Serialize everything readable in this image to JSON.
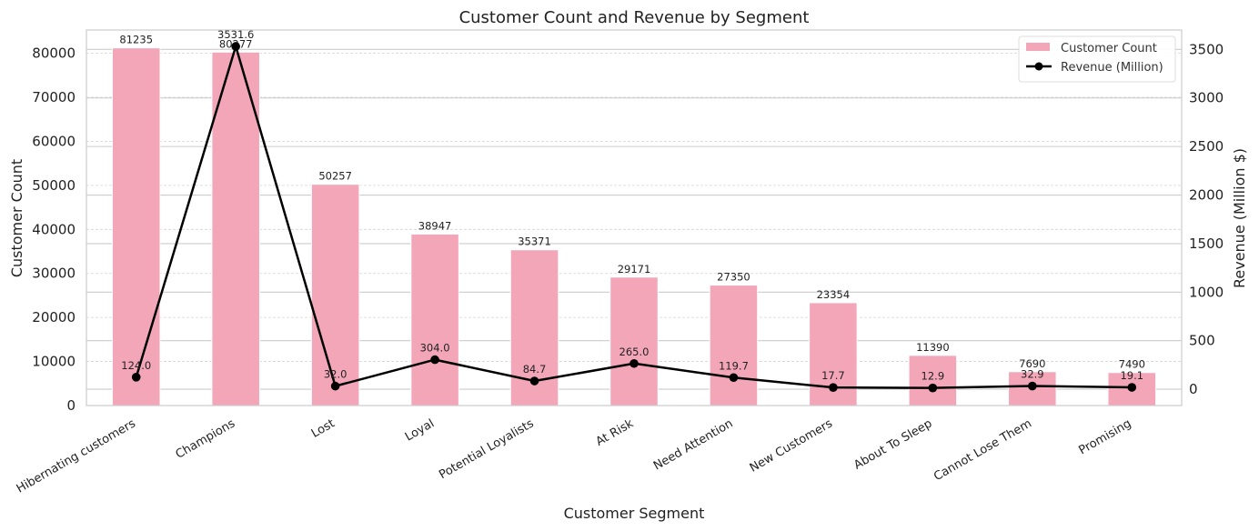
{
  "chart_data": {
    "type": "bar",
    "title": "Customer Count and Revenue by Segment",
    "xlabel": "Customer Segment",
    "ylabel": "Customer Count",
    "y2label": "Revenue (Million $)",
    "categories": [
      "Hibernating customers",
      "Champions",
      "Lost",
      "Loyal",
      "Potential Loyalists",
      "At Risk",
      "Need Attention",
      "New Customers",
      "About To Sleep",
      "Cannot Lose Them",
      "Promising"
    ],
    "series": [
      {
        "name": "Customer Count",
        "type": "bar",
        "axis": "left",
        "color": "#f4a6b9",
        "values": [
          81235,
          80277,
          50257,
          38947,
          35371,
          29171,
          27350,
          23354,
          11390,
          7690,
          7490
        ],
        "labels": [
          "81235",
          "80277",
          "50257",
          "38947",
          "35371",
          "29171",
          "27350",
          "23354",
          "11390",
          "7690",
          "7490"
        ]
      },
      {
        "name": "Revenue (Million)",
        "type": "line",
        "axis": "right",
        "color": "#000000",
        "values": [
          124.0,
          3531.6,
          32.0,
          304.0,
          84.7,
          265.0,
          119.7,
          17.7,
          12.9,
          32.9,
          19.1
        ],
        "labels": [
          "124.0",
          "3531.6",
          "32.0",
          "304.0",
          "84.7",
          "265.0",
          "119.7",
          "17.7",
          "12.9",
          "32.9",
          "19.1"
        ]
      }
    ],
    "ylim": [
      0,
      85295
    ],
    "y2lim": [
      -168,
      3700
    ],
    "yticks": [
      0,
      10000,
      20000,
      30000,
      40000,
      50000,
      60000,
      70000,
      80000
    ],
    "ytick_labels": [
      "0",
      "10000",
      "20000",
      "30000",
      "40000",
      "50000",
      "60000",
      "70000",
      "80000"
    ],
    "y2ticks": [
      0,
      500,
      1000,
      1500,
      2000,
      2500,
      3000,
      3500
    ],
    "y2tick_labels": [
      "0",
      "500",
      "1000",
      "1500",
      "2000",
      "2500",
      "3000",
      "3500"
    ],
    "grid": true,
    "legend_position": "top-right"
  }
}
